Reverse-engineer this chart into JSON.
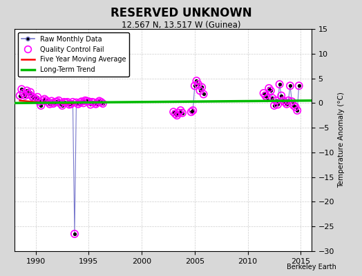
{
  "title": "RESERVED UNKNOWN",
  "subtitle": "12.567 N, 13.517 W (Guinea)",
  "ylabel": "Temperature Anomaly (°C)",
  "watermark": "Berkeley Earth",
  "xlim": [
    1988.0,
    2016.0
  ],
  "ylim": [
    -30,
    15
  ],
  "yticks": [
    -30,
    -25,
    -20,
    -15,
    -10,
    -5,
    0,
    5,
    10,
    15
  ],
  "xticks": [
    1990,
    1995,
    2000,
    2005,
    2010,
    2015
  ],
  "bg_color": "#d8d8d8",
  "plot_bg_color": "#ffffff",
  "segments": [
    {
      "x": [
        1988.5,
        1988.67,
        1988.83,
        1989.0,
        1989.17,
        1989.33,
        1989.5,
        1989.67,
        1989.83,
        1990.0,
        1990.17,
        1990.33,
        1990.5,
        1990.67,
        1990.83,
        1991.0,
        1991.17,
        1991.33,
        1991.5,
        1991.67,
        1991.83,
        1992.0,
        1992.17,
        1992.33,
        1992.5,
        1992.67,
        1992.83,
        1993.0,
        1993.17,
        1993.33,
        1993.5,
        1993.67,
        1993.83,
        1994.0,
        1994.17,
        1994.33,
        1994.5,
        1994.67,
        1994.83,
        1995.0,
        1995.17,
        1995.33,
        1995.5,
        1995.67,
        1995.83,
        1996.0,
        1996.17,
        1996.33
      ],
      "y": [
        1.5,
        2.8,
        2.0,
        1.5,
        2.5,
        1.8,
        2.2,
        1.3,
        1.0,
        0.8,
        1.2,
        0.3,
        -0.5,
        0.5,
        0.8,
        0.5,
        0.2,
        -0.2,
        0.4,
        -0.1,
        0.2,
        0.3,
        0.5,
        -0.1,
        -0.5,
        0.2,
        0.1,
        0.2,
        -0.3,
        -0.2,
        0.2,
        -26.5,
        0.1,
        -0.2,
        0.1,
        0.3,
        0.0,
        0.5,
        0.4,
        0.3,
        -0.3,
        0.2,
        0.1,
        -0.2,
        0.1,
        0.4,
        0.2,
        -0.1
      ],
      "qc": [
        true,
        true,
        true,
        true,
        true,
        true,
        true,
        true,
        true,
        true,
        true,
        true,
        true,
        true,
        true,
        true,
        true,
        true,
        true,
        true,
        true,
        true,
        true,
        true,
        true,
        true,
        true,
        true,
        true,
        true,
        false,
        true,
        true,
        true,
        true,
        true,
        false,
        true,
        true,
        true,
        true,
        true,
        true,
        true,
        true,
        true,
        true,
        false
      ]
    },
    {
      "x": [
        2003.0,
        2003.17,
        2003.33,
        2003.5,
        2003.67,
        2003.83
      ],
      "y": [
        -1.8,
        -2.2,
        -2.5,
        -2.0,
        -1.5,
        -2.0
      ],
      "qc": [
        true,
        true,
        true,
        true,
        true,
        true
      ]
    },
    {
      "x": [
        2004.67,
        2004.83,
        2005.0,
        2005.17,
        2005.33,
        2005.5,
        2005.67,
        2005.83
      ],
      "y": [
        -1.8,
        -1.5,
        3.5,
        4.5,
        3.8,
        2.5,
        3.2,
        1.8
      ],
      "qc": [
        true,
        true,
        true,
        true,
        true,
        true,
        true,
        true
      ]
    },
    {
      "x": [
        2011.5,
        2011.67,
        2011.83,
        2012.0,
        2012.17,
        2012.33,
        2012.5,
        2012.67,
        2012.83,
        2013.0,
        2013.17,
        2013.33,
        2013.5,
        2013.67,
        2013.83,
        2014.0,
        2014.17,
        2014.33,
        2014.5,
        2014.67,
        2014.83
      ],
      "y": [
        2.0,
        1.5,
        1.0,
        3.0,
        2.5,
        1.0,
        -0.5,
        0.5,
        -0.3,
        3.8,
        1.5,
        0.5,
        0.2,
        -0.2,
        0.5,
        3.5,
        0.3,
        -0.5,
        -0.8,
        -1.5,
        3.5
      ],
      "qc": [
        true,
        true,
        true,
        true,
        true,
        true,
        true,
        true,
        true,
        true,
        true,
        true,
        true,
        true,
        true,
        true,
        true,
        true,
        true,
        true,
        true
      ]
    }
  ],
  "moving_avg": {
    "x": [
      1988.5,
      1989.0,
      1989.5,
      1990.0,
      1990.5,
      1991.0,
      1991.5,
      1992.0,
      1992.5,
      1993.0,
      1993.5,
      1994.0,
      1994.5,
      1995.0,
      1995.5,
      1996.0,
      1996.5
    ],
    "y": [
      0.5,
      0.4,
      0.3,
      0.2,
      0.1,
      0.1,
      0.0,
      0.1,
      0.0,
      0.0,
      0.0,
      0.1,
      0.1,
      0.1,
      0.1,
      0.1,
      0.1
    ]
  },
  "trend": {
    "x": [
      1988.0,
      2016.0
    ],
    "y": [
      0.0,
      0.5
    ]
  },
  "colors": {
    "raw_line": "#7777cc",
    "raw_dot": "#000000",
    "qc_fail": "#ff00ff",
    "moving_avg": "#ff0000",
    "trend": "#00bb00"
  },
  "grid_color": "#cccccc"
}
